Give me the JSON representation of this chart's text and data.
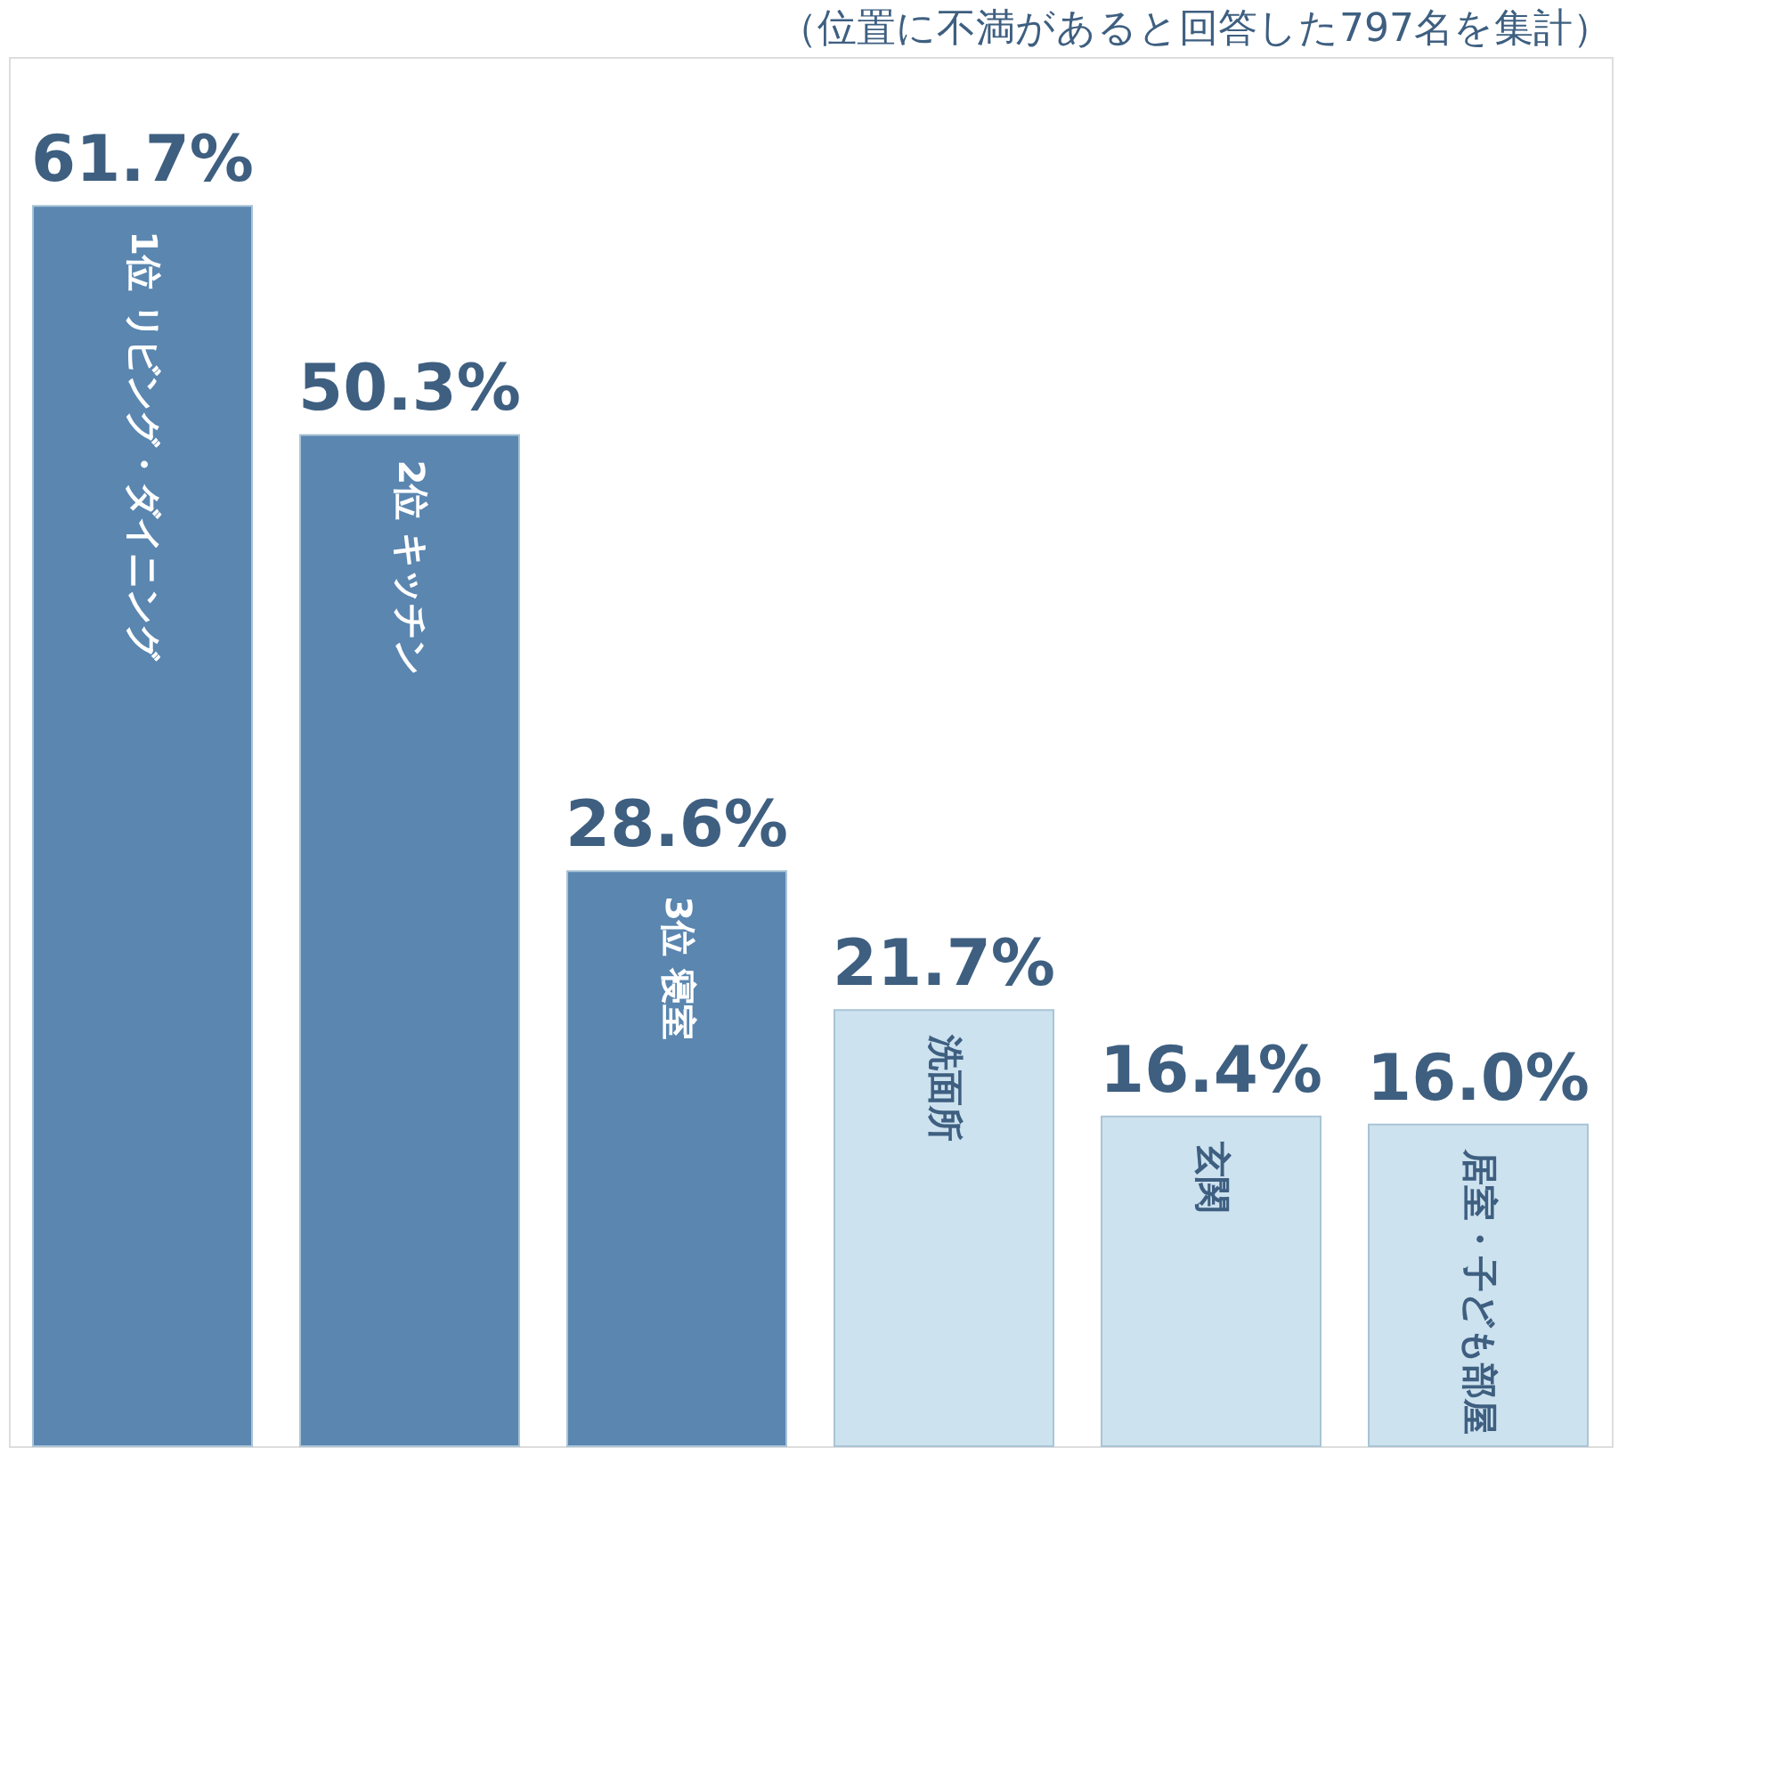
{
  "chart_data": {
    "type": "bar",
    "categories": [
      "1位 リビング・ダイニング",
      "2位 キッチン",
      "3位 寝室",
      "洗面所",
      "玄関",
      "居室・子ども部屋"
    ],
    "values": [
      61.7,
      50.3,
      28.6,
      21.7,
      16.4,
      16.0
    ],
    "colors": [
      "#5a86b0",
      "#5a86b0",
      "#5a86b0",
      "#cde2ef",
      "#cde2ef",
      "#cde2ef"
    ],
    "value_labels": [
      "61.7%",
      "50.3%",
      "28.6%",
      "21.7%",
      "16.4%",
      "16.0%"
    ],
    "annotations": [
      "（位置に不満があると回答した797名を集計）"
    ]
  }
}
